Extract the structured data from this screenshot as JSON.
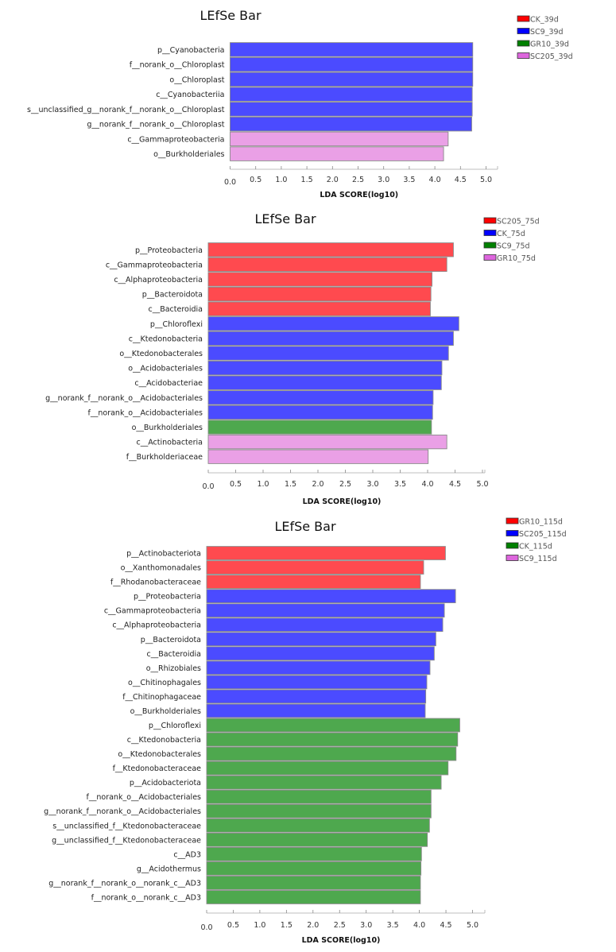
{
  "chart_data": [
    {
      "type": "bar",
      "orientation": "horizontal",
      "title": "LEfSe Bar",
      "xlabel": "LDA SCORE(log10)",
      "xlim": [
        0,
        5.0
      ],
      "xticks": [
        "0.0",
        "0.5",
        "1.0",
        "1.5",
        "2.0",
        "2.5",
        "3.0",
        "3.5",
        "4.0",
        "4.5",
        "5.0"
      ],
      "legend": [
        {
          "name": "CK_39d",
          "color": "#ff0000"
        },
        {
          "name": "SC9_39d",
          "color": "#0000ff"
        },
        {
          "name": "GR10_39d",
          "color": "#008000"
        },
        {
          "name": "SC205_39d",
          "color": "#dd66dd"
        }
      ],
      "legend_position": "top-right",
      "bars": [
        {
          "label": "p__Cyanobacteria",
          "value": 4.74,
          "group": "SC9_39d"
        },
        {
          "label": "f__norank_o__Chloroplast",
          "value": 4.74,
          "group": "SC9_39d"
        },
        {
          "label": "o__Chloroplast",
          "value": 4.74,
          "group": "SC9_39d"
        },
        {
          "label": "c__Cyanobacteriia",
          "value": 4.73,
          "group": "SC9_39d"
        },
        {
          "label": "s__unclassified_g__norank_f__norank_o__Chloroplast",
          "value": 4.73,
          "group": "SC9_39d"
        },
        {
          "label": "g__norank_f__norank_o__Chloroplast",
          "value": 4.72,
          "group": "SC9_39d"
        },
        {
          "label": "c__Gammaproteobacteria",
          "value": 4.26,
          "group": "SC205_39d"
        },
        {
          "label": "o__Burkholderiales",
          "value": 4.17,
          "group": "SC205_39d"
        }
      ]
    },
    {
      "type": "bar",
      "orientation": "horizontal",
      "title": "LEfSe Bar",
      "xlabel": "LDA SCORE(log10)",
      "xlim": [
        0,
        5.0
      ],
      "xticks": [
        "0.0",
        "0.5",
        "1.0",
        "1.5",
        "2.0",
        "2.5",
        "3.0",
        "3.5",
        "4.0",
        "4.5",
        "5.0"
      ],
      "legend": [
        {
          "name": "SC205_75d",
          "color": "#ff0000"
        },
        {
          "name": "CK_75d",
          "color": "#0000ff"
        },
        {
          "name": "SC9_75d",
          "color": "#008000"
        },
        {
          "name": "GR10_75d",
          "color": "#dd66dd"
        }
      ],
      "legend_position": "top-right",
      "bars": [
        {
          "label": "p__Proteobacteria",
          "value": 4.47,
          "group": "SC205_75d"
        },
        {
          "label": "c__Gammaproteobacteria",
          "value": 4.35,
          "group": "SC205_75d"
        },
        {
          "label": "c__Alphaproteobacteria",
          "value": 4.08,
          "group": "SC205_75d"
        },
        {
          "label": "p__Bacteroidota",
          "value": 4.06,
          "group": "SC205_75d"
        },
        {
          "label": "c__Bacteroidia",
          "value": 4.05,
          "group": "SC205_75d"
        },
        {
          "label": "p__Chloroflexi",
          "value": 4.57,
          "group": "CK_75d"
        },
        {
          "label": "c__Ktedonobacteria",
          "value": 4.47,
          "group": "CK_75d"
        },
        {
          "label": "o__Ktedonobacterales",
          "value": 4.38,
          "group": "CK_75d"
        },
        {
          "label": "o__Acidobacteriales",
          "value": 4.26,
          "group": "CK_75d"
        },
        {
          "label": "c__Acidobacteriae",
          "value": 4.25,
          "group": "CK_75d"
        },
        {
          "label": "g__norank_f__norank_o__Acidobacteriales",
          "value": 4.1,
          "group": "CK_75d"
        },
        {
          "label": "f__norank_o__Acidobacteriales",
          "value": 4.09,
          "group": "CK_75d"
        },
        {
          "label": "o__Burkholderiales",
          "value": 4.07,
          "group": "SC9_75d"
        },
        {
          "label": "c__Actinobacteria",
          "value": 4.35,
          "group": "GR10_75d"
        },
        {
          "label": "f__Burkholderiaceae",
          "value": 4.01,
          "group": "GR10_75d"
        }
      ]
    },
    {
      "type": "bar",
      "orientation": "horizontal",
      "title": "LEfSe Bar",
      "xlabel": "LDA SCORE(log10)",
      "xlim": [
        0,
        5.0
      ],
      "xticks": [
        "0.0",
        "0.5",
        "1.0",
        "1.5",
        "2.0",
        "2.5",
        "3.0",
        "3.5",
        "4.0",
        "4.5",
        "5.0"
      ],
      "legend": [
        {
          "name": "GR10_115d",
          "color": "#ff0000"
        },
        {
          "name": "SC205_115d",
          "color": "#0000ff"
        },
        {
          "name": "CK_115d",
          "color": "#008000"
        },
        {
          "name": "SC9_115d",
          "color": "#dd66dd"
        }
      ],
      "legend_position": "top-right",
      "bars": [
        {
          "label": "p__Actinobacteriota",
          "value": 4.49,
          "group": "GR10_115d"
        },
        {
          "label": "o__Xanthomonadales",
          "value": 4.08,
          "group": "GR10_115d"
        },
        {
          "label": "f__Rhodanobacteraceae",
          "value": 4.02,
          "group": "GR10_115d"
        },
        {
          "label": "p__Proteobacteria",
          "value": 4.68,
          "group": "SC205_115d"
        },
        {
          "label": "c__Gammaproteobacteria",
          "value": 4.47,
          "group": "SC205_115d"
        },
        {
          "label": "c__Alphaproteobacteria",
          "value": 4.44,
          "group": "SC205_115d"
        },
        {
          "label": "p__Bacteroidota",
          "value": 4.31,
          "group": "SC205_115d"
        },
        {
          "label": "c__Bacteroidia",
          "value": 4.28,
          "group": "SC205_115d"
        },
        {
          "label": "o__Rhizobiales",
          "value": 4.2,
          "group": "SC205_115d"
        },
        {
          "label": "o__Chitinophagales",
          "value": 4.14,
          "group": "SC205_115d"
        },
        {
          "label": "f__Chitinophagaceae",
          "value": 4.12,
          "group": "SC205_115d"
        },
        {
          "label": "o__Burkholderiales",
          "value": 4.11,
          "group": "SC205_115d"
        },
        {
          "label": "p__Chloroflexi",
          "value": 4.76,
          "group": "CK_115d"
        },
        {
          "label": "c__Ktedonobacteria",
          "value": 4.72,
          "group": "CK_115d"
        },
        {
          "label": "o__Ktedonobacterales",
          "value": 4.69,
          "group": "CK_115d"
        },
        {
          "label": "f__Ktedonobacteraceae",
          "value": 4.54,
          "group": "CK_115d"
        },
        {
          "label": "p__Acidobacteriota",
          "value": 4.41,
          "group": "CK_115d"
        },
        {
          "label": "f__norank_o__Acidobacteriales",
          "value": 4.22,
          "group": "CK_115d"
        },
        {
          "label": "g__norank_f__norank_o__Acidobacteriales",
          "value": 4.22,
          "group": "CK_115d"
        },
        {
          "label": "s__unclassified_f__Ktedonobacteraceae",
          "value": 4.19,
          "group": "CK_115d"
        },
        {
          "label": "g__unclassified_f__Ktedonobacteraceae",
          "value": 4.15,
          "group": "CK_115d"
        },
        {
          "label": "c__AD3",
          "value": 4.04,
          "group": "CK_115d"
        },
        {
          "label": "g__Acidothermus",
          "value": 4.03,
          "group": "CK_115d"
        },
        {
          "label": "g__norank_f__norank_o__norank_c__AD3",
          "value": 4.02,
          "group": "CK_115d"
        },
        {
          "label": "f__norank_o__norank_c__AD3",
          "value": 4.02,
          "group": "CK_115d"
        }
      ]
    }
  ],
  "bar_fill_colors": {
    "#ff0000": "#ff4a4f",
    "#0000ff": "#4b4bff",
    "#008000": "#4ea84e",
    "#dd66dd": "#eaa0e6"
  }
}
